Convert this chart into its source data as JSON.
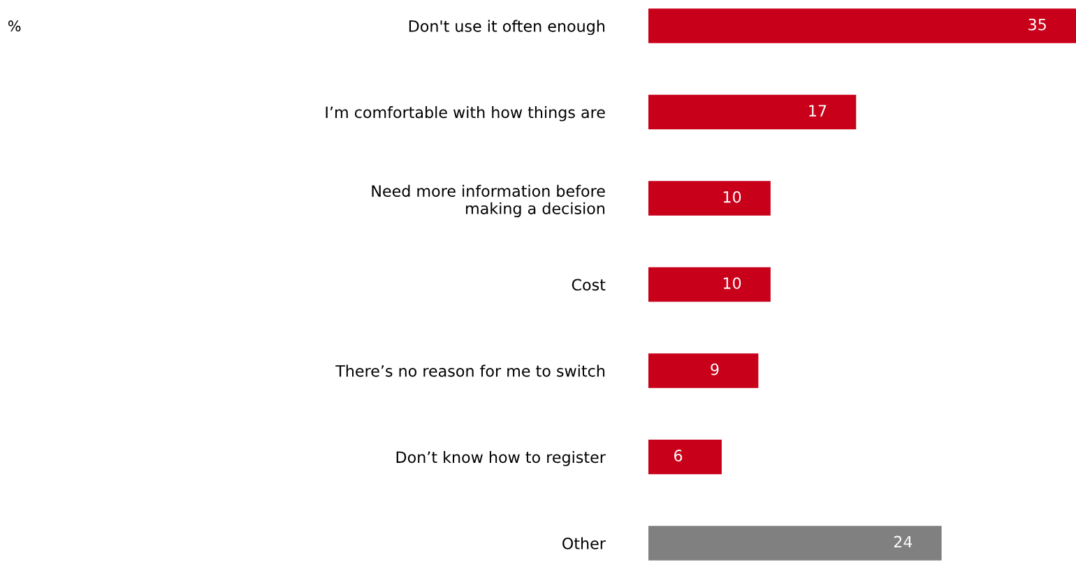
{
  "chart_data": {
    "type": "bar",
    "orientation": "horizontal",
    "categories": [
      "Don't use it often enough",
      "I’m comfortable with how things are",
      "Need more information before\nmaking a decision",
      "Cost",
      "There’s no reason for me to switch",
      "Don’t know how to register",
      "Other"
    ],
    "values": [
      35,
      17,
      10,
      10,
      9,
      6,
      24
    ],
    "colors": [
      "#c8001a",
      "#c8001a",
      "#c8001a",
      "#c8001a",
      "#c8001a",
      "#c8001a",
      "#808080"
    ],
    "data_labels": true,
    "tick_labels": "y",
    "grid": false,
    "legend": false,
    "annotations": [
      "%"
    ]
  }
}
